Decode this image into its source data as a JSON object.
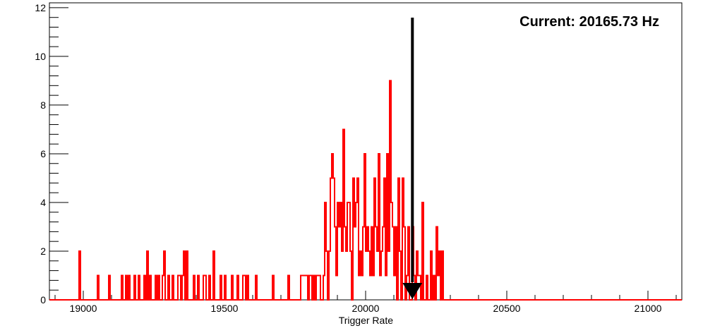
{
  "chart_data": {
    "type": "histogram",
    "title": "",
    "xlabel": "Trigger Rate",
    "ylabel": "",
    "xlim": [
      18880,
      21120
    ],
    "ylim": [
      0,
      12.2
    ],
    "x_ticks": [
      19000,
      19500,
      20000,
      20500,
      21000
    ],
    "x_tick_labels": [
      "19000",
      "19500",
      "20000",
      "20500",
      "21000"
    ],
    "y_ticks": [
      0,
      2,
      4,
      6,
      8,
      10,
      12
    ],
    "y_tick_labels": [
      "0",
      "2",
      "4",
      "6",
      "8",
      "10",
      "12"
    ],
    "bin_width": 5,
    "series": [
      {
        "color": "#ff0000",
        "bins": [
          [
            18985,
            2
          ],
          [
            19050,
            1
          ],
          [
            19090,
            1
          ],
          [
            19135,
            1
          ],
          [
            19150,
            1
          ],
          [
            19160,
            1
          ],
          [
            19180,
            1
          ],
          [
            19195,
            1
          ],
          [
            19215,
            1
          ],
          [
            19225,
            2
          ],
          [
            19235,
            1
          ],
          [
            19255,
            1
          ],
          [
            19265,
            1
          ],
          [
            19280,
            1
          ],
          [
            19285,
            2
          ],
          [
            19300,
            1
          ],
          [
            19315,
            1
          ],
          [
            19335,
            1
          ],
          [
            19340,
            1
          ],
          [
            19350,
            1
          ],
          [
            19355,
            2
          ],
          [
            19365,
            2
          ],
          [
            19390,
            1
          ],
          [
            19405,
            1
          ],
          [
            19425,
            1
          ],
          [
            19430,
            1
          ],
          [
            19445,
            1
          ],
          [
            19460,
            2
          ],
          [
            19485,
            1
          ],
          [
            19500,
            1
          ],
          [
            19525,
            1
          ],
          [
            19545,
            1
          ],
          [
            19565,
            1
          ],
          [
            19570,
            1
          ],
          [
            19580,
            1
          ],
          [
            19610,
            1
          ],
          [
            19670,
            1
          ],
          [
            19725,
            1
          ],
          [
            19770,
            1
          ],
          [
            19775,
            1
          ],
          [
            19780,
            1
          ],
          [
            19785,
            1
          ],
          [
            19790,
            1
          ],
          [
            19800,
            1
          ],
          [
            19805,
            1
          ],
          [
            19815,
            1
          ],
          [
            19825,
            1
          ],
          [
            19830,
            1
          ],
          [
            19835,
            1
          ],
          [
            19850,
            1
          ],
          [
            19855,
            4
          ],
          [
            19860,
            2
          ],
          [
            19870,
            2
          ],
          [
            19875,
            5
          ],
          [
            19880,
            6
          ],
          [
            19885,
            5
          ],
          [
            19890,
            3
          ],
          [
            19895,
            1
          ],
          [
            19900,
            4
          ],
          [
            19905,
            3
          ],
          [
            19910,
            4
          ],
          [
            19915,
            2
          ],
          [
            19920,
            7
          ],
          [
            19925,
            3
          ],
          [
            19930,
            2
          ],
          [
            19935,
            4
          ],
          [
            19940,
            4
          ],
          [
            19945,
            2
          ],
          [
            19955,
            5
          ],
          [
            19960,
            3
          ],
          [
            19965,
            4
          ],
          [
            19970,
            5
          ],
          [
            19975,
            1
          ],
          [
            19980,
            2
          ],
          [
            19985,
            1
          ],
          [
            19990,
            3
          ],
          [
            19995,
            6
          ],
          [
            20000,
            2
          ],
          [
            20005,
            3
          ],
          [
            20010,
            2
          ],
          [
            20015,
            1
          ],
          [
            20020,
            3
          ],
          [
            20025,
            1
          ],
          [
            20030,
            5
          ],
          [
            20035,
            3
          ],
          [
            20040,
            2
          ],
          [
            20045,
            6
          ],
          [
            20050,
            1
          ],
          [
            20055,
            2
          ],
          [
            20060,
            3
          ],
          [
            20065,
            5
          ],
          [
            20070,
            1
          ],
          [
            20075,
            6
          ],
          [
            20080,
            2
          ],
          [
            20085,
            9
          ],
          [
            20090,
            4
          ],
          [
            20095,
            3
          ],
          [
            20100,
            1
          ],
          [
            20105,
            3
          ],
          [
            20115,
            5
          ],
          [
            20120,
            2
          ],
          [
            20130,
            5
          ],
          [
            20135,
            3
          ],
          [
            20145,
            1
          ],
          [
            20150,
            3
          ],
          [
            20165,
            3
          ],
          [
            20170,
            1
          ],
          [
            20180,
            2
          ],
          [
            20185,
            1
          ],
          [
            20190,
            1
          ],
          [
            20200,
            4
          ],
          [
            20215,
            1
          ],
          [
            20230,
            2
          ],
          [
            20240,
            1
          ],
          [
            20250,
            3
          ],
          [
            20255,
            1
          ],
          [
            20260,
            2
          ],
          [
            20270,
            2
          ]
        ]
      }
    ],
    "marker": {
      "x": 20165.73,
      "label": "Current: 20165.73 Hz",
      "color": "#000000"
    },
    "grid": false,
    "legend": "none"
  }
}
